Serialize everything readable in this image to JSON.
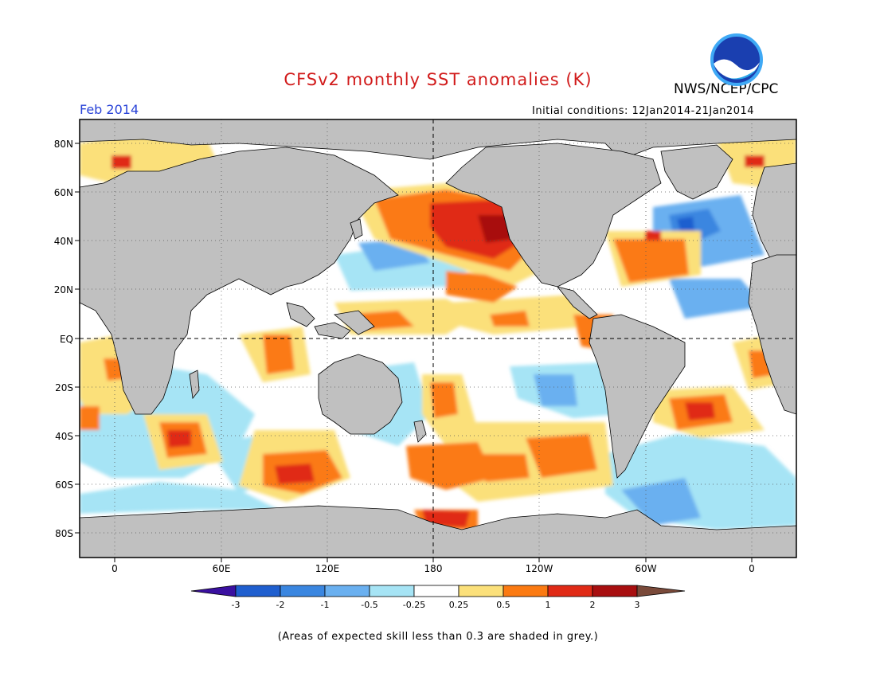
{
  "header": {
    "title": "CFSv2 monthly SST anomalies (K)",
    "org": "NWS/NCEP/CPC",
    "month": "Feb 2014",
    "initial_conditions": "Initial conditions: 12Jan2014-21Jan2014"
  },
  "logo": {
    "text": "NOAA"
  },
  "map": {
    "lat_labels": [
      "80N",
      "60N",
      "40N",
      "20N",
      "EQ",
      "20S",
      "40S",
      "60S",
      "80S"
    ],
    "lon_labels": [
      "0",
      "60E",
      "120E",
      "180",
      "120W",
      "60W",
      "0"
    ],
    "colors": {
      "land": "#c0c0c0",
      "low_skill": "#c0c0c0",
      "coast": "#000000"
    }
  },
  "colorbar": {
    "ticks": [
      "-3",
      "-2",
      "-1",
      "-0.5",
      "-0.25",
      "0.25",
      "0.5",
      "1",
      "2",
      "3"
    ],
    "colors": [
      "#3a10a0",
      "#1f5fcf",
      "#3a86e0",
      "#6ab0f0",
      "#a6e4f5",
      "#ffffff",
      "#fbe07a",
      "#fb7a12",
      "#e02a16",
      "#a80f10",
      "#7a4a3a"
    ]
  },
  "footnote": "(Areas of expected skill less than 0.3 are shaded in grey.)"
}
